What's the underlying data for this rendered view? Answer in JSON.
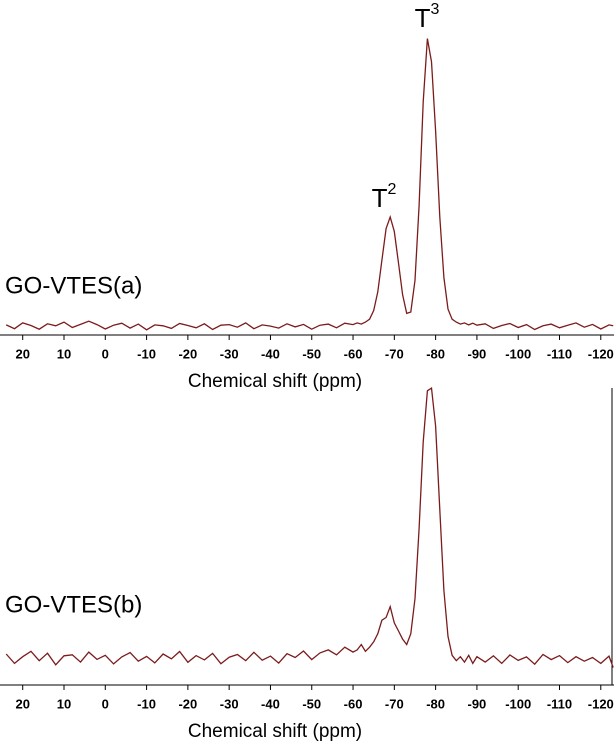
{
  "chart_data": [
    {
      "type": "line",
      "label": "GO-VTES(a)",
      "xlabel": "Chemical shift (ppm)",
      "annotations": [
        {
          "label": "T",
          "superscript": "2"
        },
        {
          "label": "T",
          "superscript": "3"
        }
      ],
      "xlim": [
        25.5,
        -123.2
      ],
      "ylim": [
        -3,
        103
      ],
      "xticks": [
        20,
        10,
        0,
        -10,
        -20,
        -30,
        -40,
        -50,
        -60,
        -70,
        -80,
        -90,
        -100,
        -110,
        -120
      ],
      "color": "#7b1c1c",
      "x": [
        24,
        22,
        20,
        18,
        16,
        14,
        12,
        10,
        8,
        6,
        4,
        2,
        0,
        -2,
        -4,
        -6,
        -8,
        -10,
        -12,
        -14,
        -16,
        -18,
        -20,
        -22,
        -24,
        -26,
        -28,
        -30,
        -32,
        -34,
        -36,
        -38,
        -40,
        -42,
        -44,
        -46,
        -48,
        -50,
        -52,
        -54,
        -56,
        -58,
        -60,
        -61,
        -62,
        -63,
        -64,
        -65,
        -66,
        -67,
        -68,
        -69,
        -70,
        -71,
        -72,
        -73,
        -74,
        -75,
        -76,
        -77,
        -78,
        -79,
        -80,
        -81,
        -82,
        -83,
        -84,
        -85,
        -86,
        -87,
        -88,
        -89,
        -90,
        -92,
        -94,
        -96,
        -98,
        -100,
        -102,
        -104,
        -106,
        -108,
        -110,
        -112,
        -114,
        -116,
        -118,
        -120,
        -122,
        -123
      ],
      "values": [
        0.5,
        -0.8,
        1.2,
        0.3,
        -1,
        0.9,
        0.2,
        1.5,
        -0.4,
        0.7,
        1.8,
        0.6,
        -0.9,
        0.4,
        1.1,
        -0.6,
        0.8,
        -1.2,
        0.5,
        0.2,
        -0.7,
        1.0,
        0.3,
        -0.5,
        0.9,
        -1.1,
        0.4,
        0.6,
        -0.3,
        1.2,
        -0.8,
        0.5,
        0.1,
        -0.6,
        0.9,
        -0.2,
        0.7,
        -1.0,
        0.4,
        0.8,
        -0.5,
        1.1,
        0.6,
        1.2,
        0.8,
        1.5,
        2.5,
        5.5,
        12,
        23,
        34,
        38,
        33,
        22,
        11,
        4.5,
        5,
        16,
        42,
        78,
        100,
        92,
        68,
        38,
        17,
        6,
        2.5,
        1.5,
        0.8,
        1.2,
        0.5,
        1.1,
        0.4,
        0.9,
        -0.7,
        0.3,
        1.0,
        -0.4,
        0.6,
        -1.1,
        0.2,
        0.8,
        -0.5,
        0.4,
        1.2,
        -0.3,
        0.7,
        -0.9,
        0.5,
        0.2
      ]
    },
    {
      "type": "line",
      "label": "GO-VTES(b)",
      "xlabel": "Chemical shift (ppm)",
      "xlim": [
        25.5,
        -123.2
      ],
      "ylim": [
        -10,
        103
      ],
      "xticks": [
        20,
        10,
        0,
        -10,
        -20,
        -30,
        -40,
        -50,
        -60,
        -70,
        -80,
        -90,
        -100,
        -110,
        -120
      ],
      "color": "#7b1c1c",
      "x": [
        24,
        22,
        20,
        18,
        16,
        14,
        12,
        10,
        8,
        6,
        4,
        2,
        0,
        -2,
        -4,
        -6,
        -8,
        -10,
        -12,
        -14,
        -16,
        -18,
        -20,
        -22,
        -24,
        -26,
        -28,
        -30,
        -32,
        -34,
        -36,
        -38,
        -40,
        -42,
        -44,
        -46,
        -48,
        -50,
        -52,
        -54,
        -56,
        -58,
        -60,
        -61,
        -62,
        -63,
        -64,
        -65,
        -66,
        -67,
        -68,
        -69,
        -70,
        -71,
        -72,
        -73,
        -74,
        -75,
        -76,
        -77,
        -78,
        -79,
        -80,
        -81,
        -82,
        -83,
        -84,
        -85,
        -86,
        -87,
        -88,
        -89,
        -90,
        -92,
        -94,
        -96,
        -98,
        -100,
        -102,
        -104,
        -106,
        -108,
        -110,
        -112,
        -114,
        -116,
        -118,
        -120,
        -122,
        -123
      ],
      "values": [
        1.5,
        -2,
        0.5,
        2.5,
        -1,
        1.8,
        -2.5,
        0.8,
        1.2,
        -1.5,
        2.2,
        -0.5,
        1.0,
        -2.2,
        0.4,
        2.0,
        -1.2,
        0.6,
        -1.8,
        1.5,
        -0.3,
        2.4,
        -1.6,
        0.9,
        -0.7,
        1.7,
        -2.1,
        0.3,
        1.3,
        -1.0,
        2.1,
        -0.8,
        0.7,
        -1.9,
        1.6,
        0.2,
        2.6,
        -0.6,
        1.9,
        3.0,
        1.2,
        4.0,
        2.2,
        3,
        5,
        2.5,
        4,
        6,
        9,
        14,
        15,
        19,
        13,
        10,
        7,
        5,
        9,
        22,
        48,
        80,
        99,
        100,
        86,
        55,
        25,
        8,
        1,
        -1,
        0.5,
        -1.5,
        1,
        -2,
        0.5,
        -1.5,
        0.8,
        -2.0,
        1.1,
        -0.9,
        0.4,
        -2.3,
        1.3,
        -0.6,
        0.9,
        -1.7,
        0.5,
        -1.2,
        0.2,
        -2.0,
        0.7,
        -3.5
      ]
    }
  ]
}
